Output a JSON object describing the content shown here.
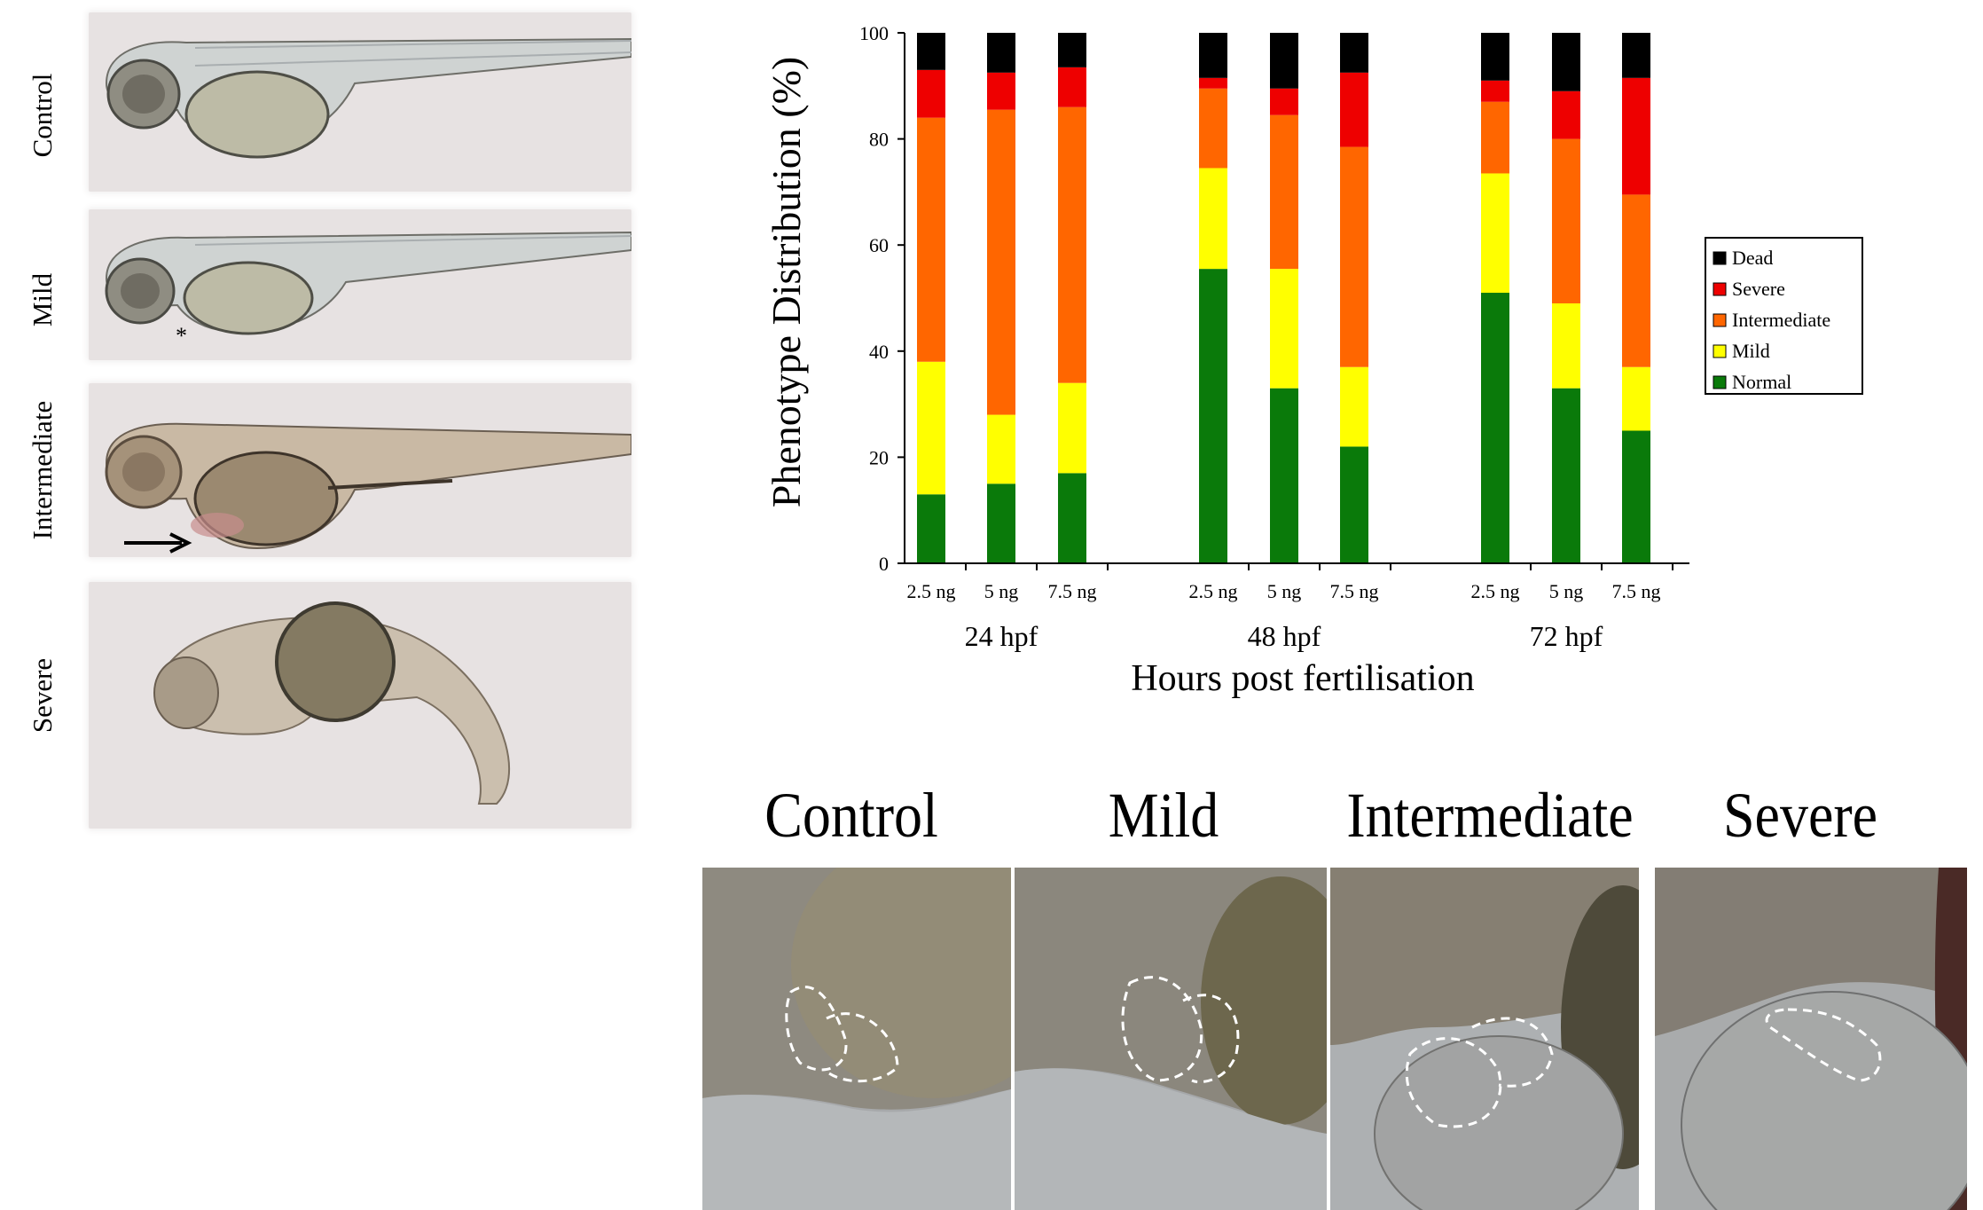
{
  "fish_rows": [
    {
      "label": "Control"
    },
    {
      "label": "Mild",
      "marker": "*"
    },
    {
      "label": "Intermediate"
    },
    {
      "label": "Severe"
    }
  ],
  "chart_data": {
    "type": "bar",
    "stacked": true,
    "ylabel": "Phenotype Distribution (%)",
    "xlabel": "Hours post fertilisation",
    "ylim": [
      0,
      100
    ],
    "yticks": [
      0,
      20,
      40,
      60,
      80,
      100
    ],
    "groups": [
      "24 hpf",
      "48 hpf",
      "72 hpf"
    ],
    "categories": [
      "2.5 ng",
      "5 ng",
      "7.5 ng",
      "2.5 ng",
      "5 ng",
      "7.5 ng",
      "2.5 ng",
      "5 ng",
      "7.5 ng"
    ],
    "series": [
      {
        "name": "Normal",
        "color": "#0a7a0a",
        "values": [
          13,
          15,
          17,
          55.5,
          33,
          22,
          51,
          33,
          25
        ]
      },
      {
        "name": "Mild",
        "color": "#ffff00",
        "values": [
          25,
          13,
          17,
          19,
          22.5,
          15,
          22.5,
          16,
          12
        ]
      },
      {
        "name": "Intermediate",
        "color": "#ff6600",
        "values": [
          46,
          57.5,
          52,
          15,
          29,
          41.5,
          13.5,
          31,
          32.5
        ]
      },
      {
        "name": "Severe",
        "color": "#ee0000",
        "values": [
          9,
          7,
          7.5,
          2,
          5,
          14,
          4,
          9,
          22
        ]
      },
      {
        "name": "Dead",
        "color": "#000000",
        "values": [
          7,
          7.5,
          6.5,
          8.5,
          10.5,
          7.5,
          9,
          11,
          8.5
        ]
      }
    ],
    "legend": {
      "position": "right",
      "order": [
        "Dead",
        "Severe",
        "Intermediate",
        "Mild",
        "Normal"
      ]
    },
    "grid": false
  },
  "micrographs": [
    {
      "title": "Control"
    },
    {
      "title": "Mild"
    },
    {
      "title": "Intermediate"
    },
    {
      "title": "Severe"
    }
  ]
}
